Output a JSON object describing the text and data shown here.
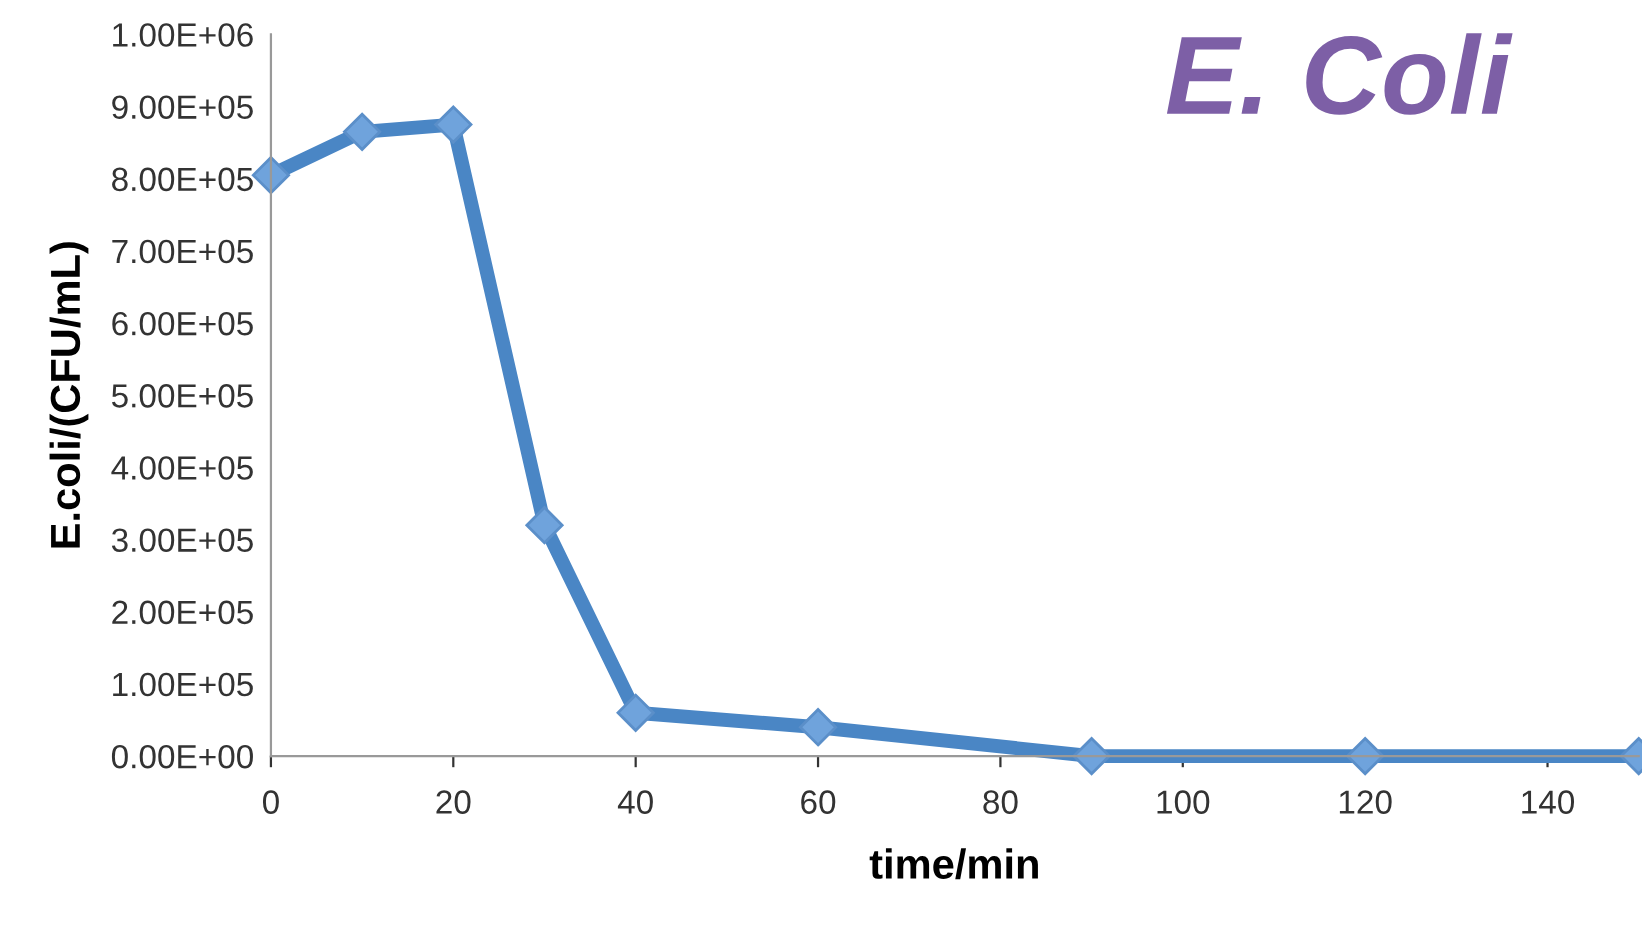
{
  "chart_data": {
    "type": "line",
    "title": "E. Coli",
    "xlabel": "time/min",
    "ylabel": "E.coli/(CFU/mL)",
    "x": [
      0,
      10,
      20,
      30,
      40,
      60,
      90,
      120,
      150
    ],
    "series": [
      {
        "color": "#4a86c5",
        "values": [
          805000,
          865000,
          875000,
          320000,
          60000,
          40000,
          0,
          0,
          0
        ]
      }
    ],
    "xlim": [
      0,
      150
    ],
    "xticks": [
      0,
      20,
      40,
      60,
      80,
      100,
      120,
      140
    ],
    "ylim": [
      0,
      1000000
    ],
    "yticks": [
      {
        "value": 0,
        "label": "0.00E+00"
      },
      {
        "value": 100000,
        "label": "1.00E+05"
      },
      {
        "value": 200000,
        "label": "2.00E+05"
      },
      {
        "value": 300000,
        "label": "3.00E+05"
      },
      {
        "value": 400000,
        "label": "4.00E+05"
      },
      {
        "value": 500000,
        "label": "5.00E+05"
      },
      {
        "value": 600000,
        "label": "6.00E+05"
      },
      {
        "value": 700000,
        "label": "7.00E+05"
      },
      {
        "value": 800000,
        "label": "8.00E+05"
      },
      {
        "value": 900000,
        "label": "9.00E+05"
      },
      {
        "value": 1000000,
        "label": "1.00E+06"
      }
    ],
    "marker": "diamond",
    "line_style": "solid",
    "grid": false,
    "legend": false
  }
}
